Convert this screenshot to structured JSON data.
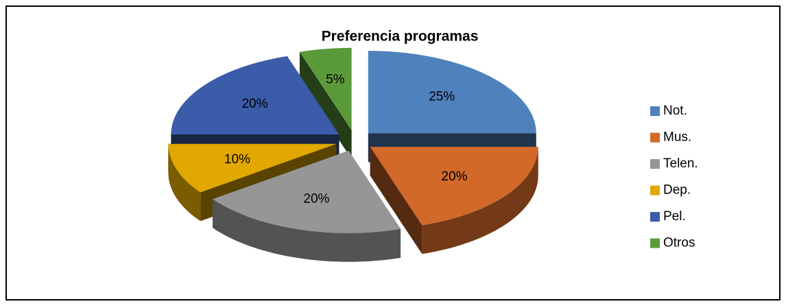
{
  "chart_data": {
    "type": "pie",
    "title": "Preferencia programas",
    "categories": [
      "Not.",
      "Mus.",
      "Telen.",
      "Dep.",
      "Pel.",
      "Otros"
    ],
    "values": [
      25,
      20,
      20,
      10,
      20,
      5
    ],
    "value_labels": [
      "25%",
      "20%",
      "20%",
      "10%",
      "20%",
      "5%"
    ],
    "colors": [
      "#4f81bd",
      "#d2692a",
      "#969696",
      "#e0a800",
      "#3b5ca8",
      "#5b9a3b"
    ],
    "legend": "right",
    "three_d": true,
    "exploded": true
  }
}
